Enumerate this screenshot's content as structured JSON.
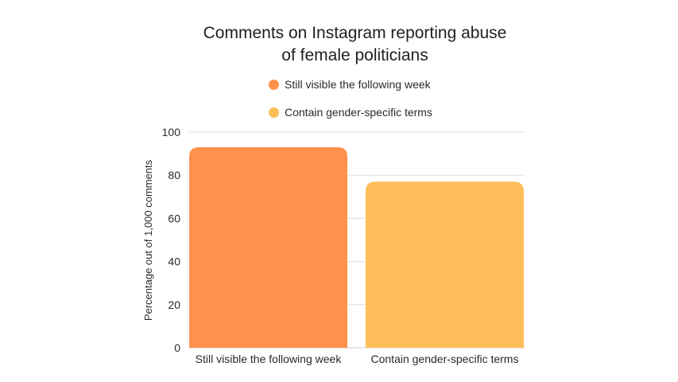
{
  "chart_data": {
    "type": "bar",
    "title_lines": [
      "Comments on Instagram reporting abuse",
      "of female politicians"
    ],
    "categories": [
      "Still visible the following week",
      "Contain gender-specific terms"
    ],
    "series": [
      {
        "name": "Still visible the following week",
        "values": [
          93,
          null
        ],
        "color": "#ff914d"
      },
      {
        "name": "Contain gender-specific terms",
        "values": [
          null,
          77
        ],
        "color": "#ffbd59"
      }
    ],
    "values": [
      93,
      77
    ],
    "colors": [
      "#ff914d",
      "#ffbd59"
    ],
    "xlabel": "",
    "ylabel": "Percentage out of 1,000 comments",
    "ylim": [
      0,
      100
    ],
    "yticks": [
      0,
      20,
      40,
      60,
      80,
      100
    ],
    "grid": true,
    "legend_position": "top-center"
  }
}
